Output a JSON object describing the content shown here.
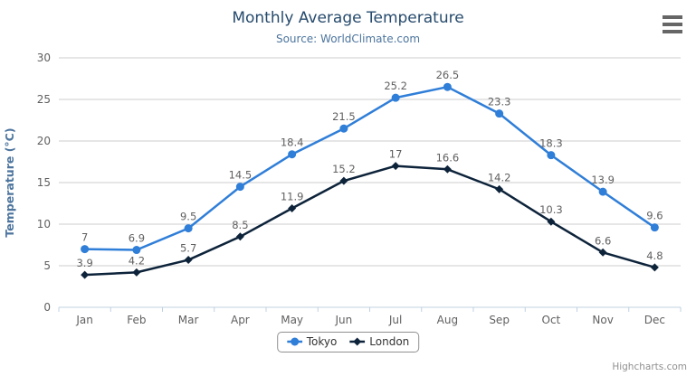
{
  "chart_data": {
    "type": "line",
    "title": "Monthly Average Temperature",
    "subtitle": "Source: WorldClimate.com",
    "categories": [
      "Jan",
      "Feb",
      "Mar",
      "Apr",
      "May",
      "Jun",
      "Jul",
      "Aug",
      "Sep",
      "Oct",
      "Nov",
      "Dec"
    ],
    "series": [
      {
        "name": "Tokyo",
        "color": "#2f7ed8",
        "marker": "circle",
        "values": [
          7,
          6.9,
          9.5,
          14.5,
          18.4,
          21.5,
          25.2,
          26.5,
          23.3,
          18.3,
          13.9,
          9.6
        ]
      },
      {
        "name": "London",
        "color": "#0d233a",
        "marker": "diamond",
        "values": [
          3.9,
          4.2,
          5.7,
          8.5,
          11.9,
          15.2,
          17,
          16.6,
          14.2,
          10.3,
          6.6,
          4.8
        ]
      }
    ],
    "xlabel": "",
    "ylabel": "Temperature (°C)",
    "ylim": [
      0,
      30
    ],
    "ytick_step": 5,
    "grid": true,
    "legend_position": "bottom-center",
    "data_labels": true
  },
  "credits": "Highcharts.com",
  "colors": {
    "title": "#274b6d",
    "subtitle": "#4d759e",
    "axis_title": "#4d759e",
    "axis_label": "#606060",
    "grid_line": "#cccccc",
    "axis_line": "#c0d0e0",
    "data_label": "#606060",
    "legend_text": "#333333",
    "legend_border": "#909090",
    "credits": "#909090",
    "background": "#ffffff"
  }
}
